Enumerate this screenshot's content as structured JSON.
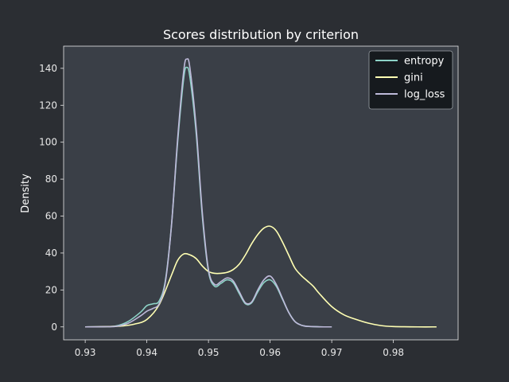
{
  "chart_data": {
    "type": "line",
    "title": "Scores distribution by criterion",
    "xlabel": "",
    "ylabel": "Density",
    "xlim": [
      0.9265,
      0.9905
    ],
    "ylim": [
      -7,
      152
    ],
    "xticks": [
      0.93,
      0.94,
      0.95,
      0.96,
      0.97,
      0.98
    ],
    "yticks": [
      0,
      20,
      40,
      60,
      80,
      100,
      120,
      140
    ],
    "grid": false,
    "legend_position": "top-right",
    "background": "#2b2e33",
    "plot_background": "#3a3f47",
    "series": [
      {
        "name": "entropy",
        "color": "#8dd3c7",
        "points": [
          [
            0.93,
            0
          ],
          [
            0.933,
            0.1
          ],
          [
            0.935,
            0.5
          ],
          [
            0.937,
            3
          ],
          [
            0.939,
            8
          ],
          [
            0.94,
            11.5
          ],
          [
            0.941,
            12.5
          ],
          [
            0.942,
            14
          ],
          [
            0.943,
            25
          ],
          [
            0.944,
            55
          ],
          [
            0.945,
            100
          ],
          [
            0.946,
            135
          ],
          [
            0.9465,
            140.5
          ],
          [
            0.947,
            135
          ],
          [
            0.948,
            105
          ],
          [
            0.949,
            60
          ],
          [
            0.95,
            30
          ],
          [
            0.951,
            22
          ],
          [
            0.952,
            23.5
          ],
          [
            0.953,
            25.5
          ],
          [
            0.954,
            24
          ],
          [
            0.955,
            18
          ],
          [
            0.956,
            12.5
          ],
          [
            0.957,
            13
          ],
          [
            0.958,
            19
          ],
          [
            0.959,
            24
          ],
          [
            0.96,
            25.5
          ],
          [
            0.961,
            22
          ],
          [
            0.962,
            15
          ],
          [
            0.963,
            8
          ],
          [
            0.964,
            3
          ],
          [
            0.965,
            1
          ],
          [
            0.966,
            0.3
          ],
          [
            0.968,
            0.05
          ],
          [
            0.97,
            0
          ]
        ]
      },
      {
        "name": "gini",
        "color": "#ffffb3",
        "points": [
          [
            0.93,
            0
          ],
          [
            0.934,
            0.2
          ],
          [
            0.936,
            0.5
          ],
          [
            0.938,
            1.5
          ],
          [
            0.94,
            4
          ],
          [
            0.942,
            12
          ],
          [
            0.944,
            28
          ],
          [
            0.945,
            36
          ],
          [
            0.946,
            39.5
          ],
          [
            0.947,
            39
          ],
          [
            0.948,
            37
          ],
          [
            0.949,
            33
          ],
          [
            0.95,
            30
          ],
          [
            0.951,
            29
          ],
          [
            0.952,
            29
          ],
          [
            0.953,
            29.5
          ],
          [
            0.954,
            31
          ],
          [
            0.955,
            34
          ],
          [
            0.956,
            39
          ],
          [
            0.957,
            45
          ],
          [
            0.958,
            50
          ],
          [
            0.959,
            53.5
          ],
          [
            0.96,
            54.5
          ],
          [
            0.961,
            52
          ],
          [
            0.962,
            46
          ],
          [
            0.963,
            39
          ],
          [
            0.964,
            32
          ],
          [
            0.965,
            28
          ],
          [
            0.966,
            25
          ],
          [
            0.967,
            22
          ],
          [
            0.968,
            18
          ],
          [
            0.97,
            11
          ],
          [
            0.972,
            6.5
          ],
          [
            0.974,
            4
          ],
          [
            0.976,
            2
          ],
          [
            0.978,
            0.7
          ],
          [
            0.98,
            0.2
          ],
          [
            0.984,
            0
          ],
          [
            0.987,
            0
          ]
        ]
      },
      {
        "name": "log_loss",
        "color": "#bebada",
        "points": [
          [
            0.93,
            0
          ],
          [
            0.933,
            0.1
          ],
          [
            0.935,
            0.3
          ],
          [
            0.937,
            2
          ],
          [
            0.939,
            6
          ],
          [
            0.94,
            8.5
          ],
          [
            0.941,
            10
          ],
          [
            0.942,
            12.5
          ],
          [
            0.943,
            24
          ],
          [
            0.944,
            55
          ],
          [
            0.945,
            102
          ],
          [
            0.946,
            139
          ],
          [
            0.9465,
            145
          ],
          [
            0.947,
            140
          ],
          [
            0.948,
            108
          ],
          [
            0.949,
            62
          ],
          [
            0.95,
            31
          ],
          [
            0.951,
            23
          ],
          [
            0.952,
            24.5
          ],
          [
            0.953,
            26.5
          ],
          [
            0.954,
            25
          ],
          [
            0.955,
            19
          ],
          [
            0.956,
            13
          ],
          [
            0.957,
            13.5
          ],
          [
            0.958,
            20
          ],
          [
            0.959,
            25.5
          ],
          [
            0.96,
            27.5
          ],
          [
            0.961,
            23
          ],
          [
            0.962,
            15.5
          ],
          [
            0.963,
            8
          ],
          [
            0.964,
            3
          ],
          [
            0.965,
            1
          ],
          [
            0.966,
            0.3
          ],
          [
            0.968,
            0.05
          ],
          [
            0.97,
            0
          ]
        ]
      }
    ]
  }
}
